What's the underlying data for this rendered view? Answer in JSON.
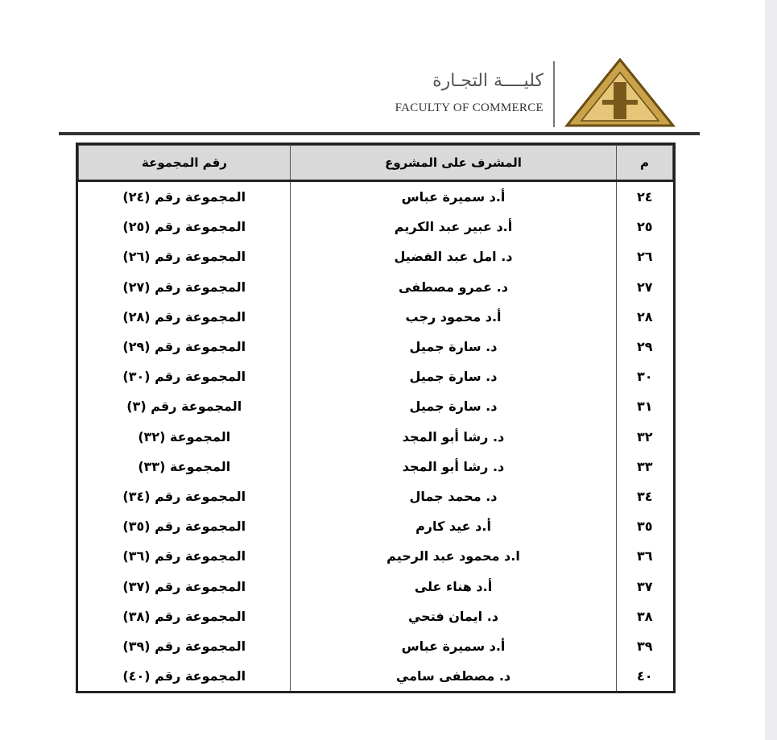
{
  "header": {
    "title_ar": "كليــــة التجـارة",
    "title_en": "FACULTY OF COMMERCE"
  },
  "table": {
    "columns": [
      "م",
      "المشرف على المشروع",
      "رقم المجموعة"
    ],
    "rows": [
      [
        "٢٤",
        "أ.د سميرة عباس",
        "المجموعة رقم (٢٤)"
      ],
      [
        "٢٥",
        "أ.د عبير عبد الكريم",
        "المجموعة رقم (٢٥)"
      ],
      [
        "٢٦",
        "د. امل عبد الفضيل",
        "المجموعة رقم (٢٦)"
      ],
      [
        "٢٧",
        "د. عمرو مصطفى",
        "المجموعة رقم (٢٧)"
      ],
      [
        "٢٨",
        "أ.د محمود رجب",
        "المجموعة رقم (٢٨)"
      ],
      [
        "٢٩",
        "د. سارة جميل",
        "المجموعة رقم (٢٩)"
      ],
      [
        "٣٠",
        "د. سارة جميل",
        "المجموعة رقم (٣٠)"
      ],
      [
        "٣١",
        "د. سارة جميل",
        "المجموعة رقم (٣)"
      ],
      [
        "٣٢",
        "د. رشا أبو المجد",
        "المجموعة (٣٢)"
      ],
      [
        "٣٣",
        "د. رشا أبو المجد",
        "المجموعة (٣٣)"
      ],
      [
        "٣٤",
        "د. محمد جمال",
        "المجموعة رقم (٣٤)"
      ],
      [
        "٣٥",
        "أ.د عيد كارم",
        "المجموعة رقم (٣٥)"
      ],
      [
        "٣٦",
        "ا.د محمود عبد الرحيم",
        "المجموعة رقم (٣٦)"
      ],
      [
        "٣٧",
        "أ.د هناء على",
        "المجموعة رقم (٣٧)"
      ],
      [
        "٣٨",
        "د. ايمان فتحي",
        "المجموعة رقم (٣٨)"
      ],
      [
        "٣٩",
        "أ.د سميرة عباس",
        "المجموعة رقم (٣٩)"
      ],
      [
        "٤٠",
        "د. مصطفى سامي",
        "المجموعة رقم (٤٠)"
      ]
    ]
  }
}
